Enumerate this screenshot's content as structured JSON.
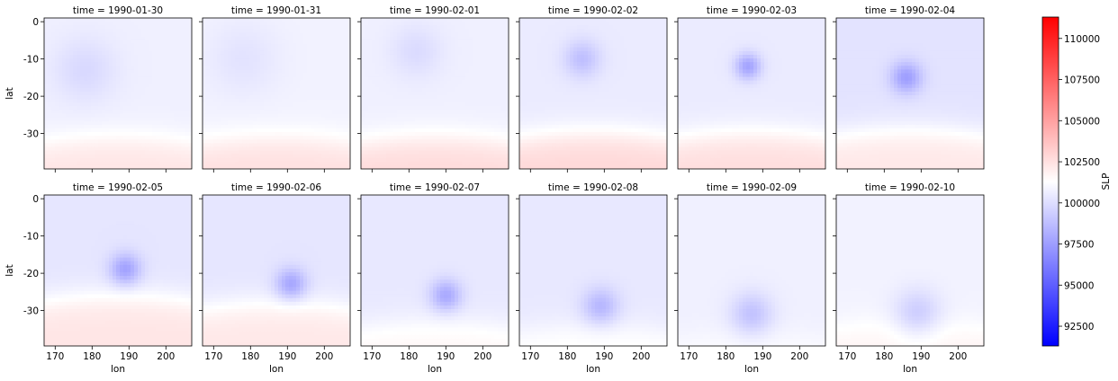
{
  "chart_data": {
    "type": "heatmap",
    "variable": "SLP",
    "panel_titles": [
      "time = 1990-01-30",
      "time = 1990-01-31",
      "time = 1990-02-01",
      "time = 1990-02-02",
      "time = 1990-02-03",
      "time = 1990-02-04",
      "time = 1990-02-05",
      "time = 1990-02-06",
      "time = 1990-02-07",
      "time = 1990-02-08",
      "time = 1990-02-09",
      "time = 1990-02-10"
    ],
    "xlabel": "lon",
    "ylabel": "lat",
    "xlim": [
      167,
      207
    ],
    "ylim": [
      -39.5,
      1
    ],
    "x_ticks": [
      170,
      180,
      190,
      200
    ],
    "y_ticks": [
      0,
      -10,
      -20,
      -30
    ],
    "colorbar": {
      "label": "SLP",
      "vmin": 91300,
      "vmax": 111300,
      "colormap": "bwr",
      "ticks": [
        92500,
        95000,
        97500,
        100000,
        102500,
        105000,
        107500,
        110000
      ],
      "colors": {
        "low": "#0000ff",
        "mid": "#ffffff",
        "high": "#ff0000"
      }
    },
    "layout": {
      "rows": 2,
      "cols": 6,
      "sharex": true,
      "sharey": true
    },
    "fields": [
      {
        "time": "1990-01-30",
        "base": 100700,
        "boundary_lat": -31,
        "south_value": 102300,
        "low": {
          "lon": 178,
          "lat": -13,
          "value": 99800,
          "radius": 6
        }
      },
      {
        "time": "1990-01-31",
        "base": 100800,
        "boundary_lat": -31,
        "south_value": 102500,
        "low": {
          "lon": 178,
          "lat": -10,
          "value": 100200,
          "radius": 7
        }
      },
      {
        "time": "1990-02-01",
        "base": 100700,
        "boundary_lat": -31,
        "south_value": 102700,
        "low": {
          "lon": 182,
          "lat": -8,
          "value": 99900,
          "radius": 5
        }
      },
      {
        "time": "1990-02-02",
        "base": 100500,
        "boundary_lat": -30,
        "south_value": 102800,
        "low": {
          "lon": 184,
          "lat": -10,
          "value": 98800,
          "radius": 3.5
        }
      },
      {
        "time": "1990-02-03",
        "base": 100500,
        "boundary_lat": -30,
        "south_value": 102600,
        "low": {
          "lon": 186,
          "lat": -12,
          "value": 97700,
          "radius": 2.5
        }
      },
      {
        "time": "1990-02-04",
        "base": 100200,
        "boundary_lat": -29,
        "south_value": 102200,
        "low": {
          "lon": 186,
          "lat": -15,
          "value": 97500,
          "radius": 3
        }
      },
      {
        "time": "1990-02-05",
        "base": 100300,
        "boundary_lat": -26,
        "south_value": 102300,
        "low": {
          "lon": 189,
          "lat": -19,
          "value": 97600,
          "radius": 3
        }
      },
      {
        "time": "1990-02-06",
        "base": 100300,
        "boundary_lat": -28,
        "south_value": 102200,
        "low": {
          "lon": 191,
          "lat": -23,
          "value": 97700,
          "radius": 3
        }
      },
      {
        "time": "1990-02-07",
        "base": 100400,
        "boundary_lat": -33,
        "south_value": 101600,
        "low": {
          "lon": 190,
          "lat": -26,
          "value": 97900,
          "radius": 3
        }
      },
      {
        "time": "1990-02-08",
        "base": 100400,
        "boundary_lat": -34,
        "south_value": 101400,
        "low": {
          "lon": 189,
          "lat": -29,
          "value": 98400,
          "radius": 3.5
        }
      },
      {
        "time": "1990-02-09",
        "base": 100700,
        "boundary_lat": -36,
        "south_value": 101200,
        "low": {
          "lon": 187,
          "lat": -31,
          "value": 98900,
          "radius": 4
        }
      },
      {
        "time": "1990-02-10",
        "base": 100800,
        "boundary_lat": -33,
        "south_value": 101700,
        "low": {
          "lon": 189,
          "lat": -31,
          "value": 99200,
          "radius": 4.5
        }
      }
    ]
  }
}
